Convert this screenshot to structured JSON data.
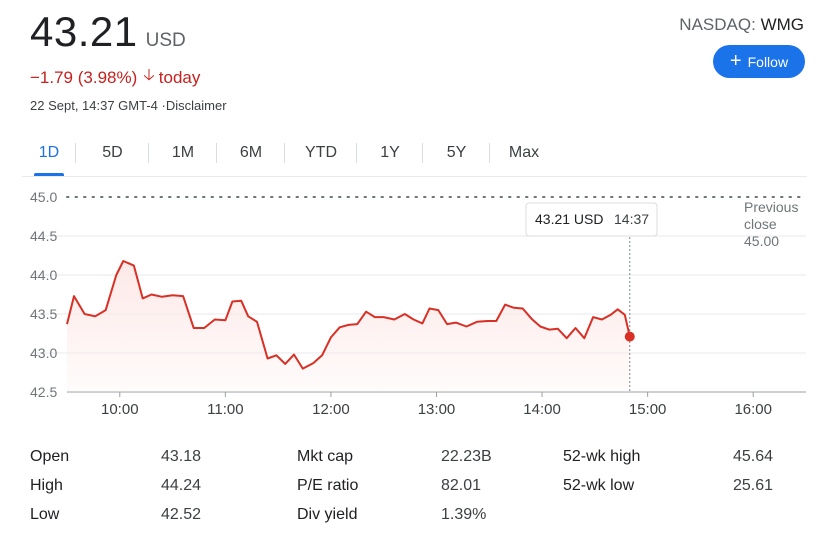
{
  "quote": {
    "price": "43.21",
    "currency": "USD",
    "change": "−1.79 (3.98%)",
    "change_direction": "down",
    "change_suffix": "today",
    "timestamp": "22 Sept, 14:37 GMT-4 ·Disclaimer",
    "exchange": "NASDAQ:",
    "symbol": "WMG"
  },
  "follow_button": {
    "label": "Follow",
    "icon": "plus-icon",
    "color": "#1a73e8"
  },
  "tabs": [
    "1D",
    "5D",
    "1M",
    "6M",
    "YTD",
    "1Y",
    "5Y",
    "Max"
  ],
  "active_tab": "1D",
  "chart_data": {
    "type": "line",
    "ylim": [
      42.5,
      45.0
    ],
    "y_ticks": [
      "45.0",
      "44.5",
      "44.0",
      "43.5",
      "43.0",
      "42.5"
    ],
    "x_ticks": [
      "10:00",
      "11:00",
      "12:00",
      "13:00",
      "14:00",
      "15:00",
      "16:00"
    ],
    "x_range": [
      "09:30",
      "16:30"
    ],
    "line_color": "#d93025",
    "previous_close": {
      "label_line1": "Previous",
      "label_line2": "close",
      "value": "45.00"
    },
    "tooltip": {
      "price": "43.21 USD",
      "time": "14:37"
    },
    "series": [
      {
        "points": [
          [
            "09:30",
            43.37
          ],
          [
            "09:34",
            43.73
          ],
          [
            "09:40",
            43.5
          ],
          [
            "09:46",
            43.47
          ],
          [
            "09:52",
            43.55
          ],
          [
            "09:58",
            44.0
          ],
          [
            "10:02",
            44.18
          ],
          [
            "10:08",
            44.12
          ],
          [
            "10:13",
            43.7
          ],
          [
            "10:18",
            43.75
          ],
          [
            "10:24",
            43.72
          ],
          [
            "10:30",
            43.74
          ],
          [
            "10:36",
            43.73
          ],
          [
            "10:42",
            43.32
          ],
          [
            "10:48",
            43.32
          ],
          [
            "10:54",
            43.43
          ],
          [
            "11:00",
            43.42
          ],
          [
            "11:04",
            43.66
          ],
          [
            "11:09",
            43.67
          ],
          [
            "11:13",
            43.47
          ],
          [
            "11:18",
            43.4
          ],
          [
            "11:24",
            42.93
          ],
          [
            "11:29",
            42.97
          ],
          [
            "11:34",
            42.86
          ],
          [
            "11:39",
            42.98
          ],
          [
            "11:44",
            42.8
          ],
          [
            "11:50",
            42.87
          ],
          [
            "11:55",
            42.97
          ],
          [
            "12:00",
            43.2
          ],
          [
            "12:05",
            43.33
          ],
          [
            "12:10",
            43.36
          ],
          [
            "12:15",
            43.37
          ],
          [
            "12:20",
            43.53
          ],
          [
            "12:25",
            43.46
          ],
          [
            "12:30",
            43.46
          ],
          [
            "12:36",
            43.43
          ],
          [
            "12:42",
            43.5
          ],
          [
            "12:47",
            43.43
          ],
          [
            "12:52",
            43.38
          ],
          [
            "12:56",
            43.57
          ],
          [
            "13:01",
            43.55
          ],
          [
            "13:06",
            43.37
          ],
          [
            "13:11",
            43.39
          ],
          [
            "13:17",
            43.34
          ],
          [
            "13:23",
            43.4
          ],
          [
            "13:29",
            43.41
          ],
          [
            "13:34",
            43.41
          ],
          [
            "13:39",
            43.62
          ],
          [
            "13:44",
            43.58
          ],
          [
            "13:49",
            43.57
          ],
          [
            "13:54",
            43.44
          ],
          [
            "13:59",
            43.34
          ],
          [
            "14:04",
            43.3
          ],
          [
            "14:09",
            43.31
          ],
          [
            "14:14",
            43.19
          ],
          [
            "14:19",
            43.32
          ],
          [
            "14:24",
            43.19
          ],
          [
            "14:29",
            43.46
          ],
          [
            "14:34",
            43.43
          ],
          [
            "14:39",
            43.49
          ],
          [
            "14:43",
            43.56
          ],
          [
            "14:47",
            43.49
          ],
          [
            "14:37",
            43.21
          ]
        ]
      }
    ]
  },
  "stats": {
    "rows": [
      [
        [
          "Open",
          "43.18"
        ],
        [
          "Mkt cap",
          "22.23B"
        ],
        [
          "52-wk high",
          "45.64"
        ]
      ],
      [
        [
          "High",
          "44.24"
        ],
        [
          "P/E ratio",
          "82.01"
        ],
        [
          "52-wk low",
          "25.61"
        ]
      ],
      [
        [
          "Low",
          "42.52"
        ],
        [
          "Div yield",
          "1.39%"
        ]
      ]
    ]
  }
}
